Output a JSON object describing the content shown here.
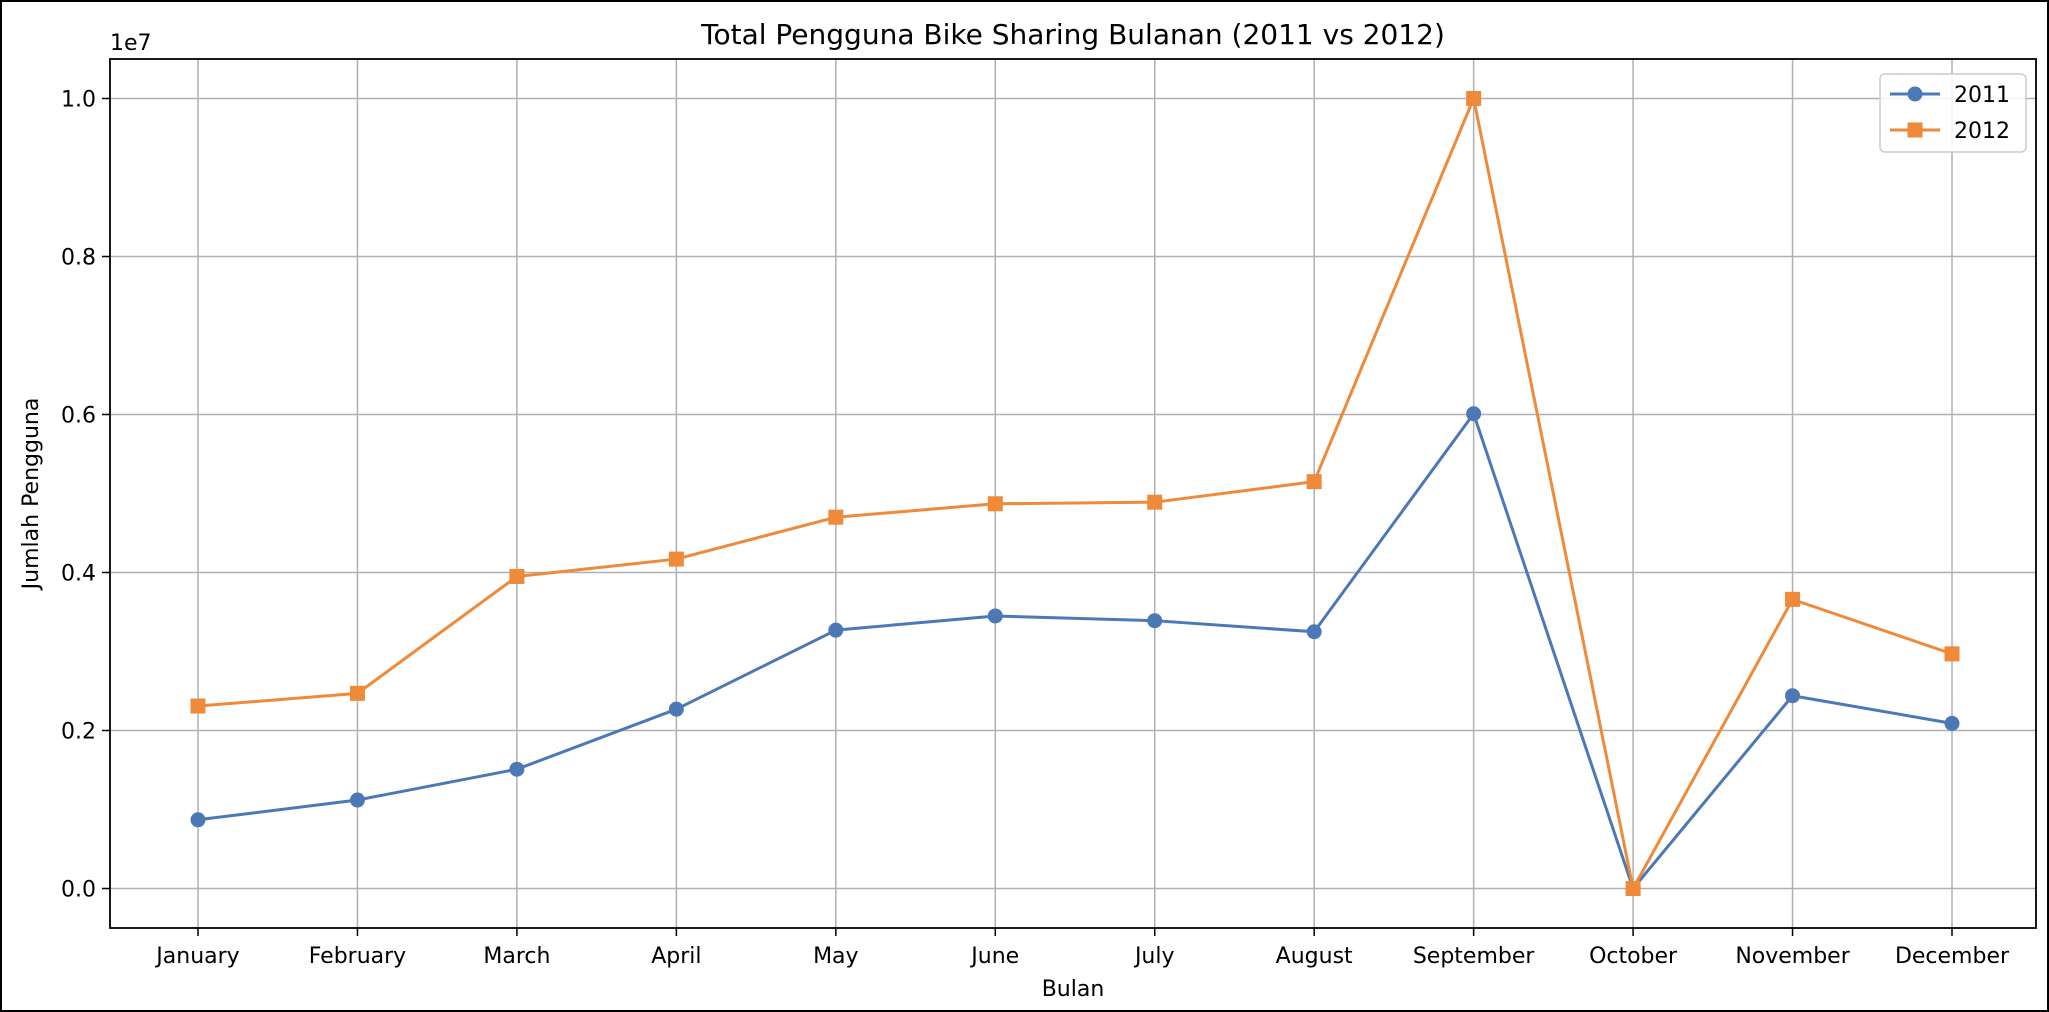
{
  "chart_data": {
    "type": "line",
    "title": "Total Pengguna Bike Sharing Bulanan (2011 vs 2012)",
    "xlabel": "Bulan",
    "ylabel": "Jumlah Pengguna",
    "y_offset_label": "1e7",
    "categories": [
      "January",
      "February",
      "March",
      "April",
      "May",
      "June",
      "July",
      "August",
      "September",
      "October",
      "November",
      "December"
    ],
    "ylim": [
      -500000,
      10500000
    ],
    "y_ticks": [
      0,
      2000000,
      4000000,
      6000000,
      8000000,
      10000000
    ],
    "y_tick_labels": [
      "0.0",
      "0.2",
      "0.4",
      "0.6",
      "0.8",
      "1.0"
    ],
    "grid": true,
    "legend_position": "top-right",
    "series": [
      {
        "name": "2011",
        "color": "#4c78b5",
        "marker": "circle",
        "values": [
          870000,
          1120000,
          1510000,
          2270000,
          3270000,
          3450000,
          3390000,
          3250000,
          6010000,
          0,
          2440000,
          2090000
        ]
      },
      {
        "name": "2012",
        "color": "#ee8a3a",
        "marker": "square",
        "values": [
          2310000,
          2470000,
          3950000,
          4170000,
          4700000,
          4870000,
          4890000,
          5150000,
          10000000,
          0,
          3660000,
          2970000
        ]
      }
    ]
  }
}
